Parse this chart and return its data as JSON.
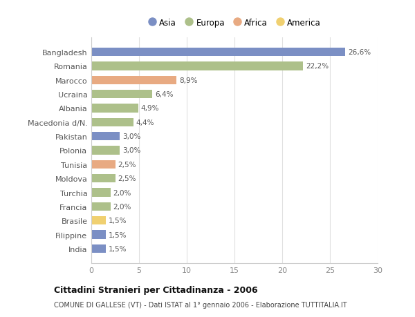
{
  "countries": [
    "Bangladesh",
    "Romania",
    "Marocco",
    "Ucraina",
    "Albania",
    "Macedonia d/N.",
    "Pakistan",
    "Polonia",
    "Tunisia",
    "Moldova",
    "Turchia",
    "Francia",
    "Brasile",
    "Filippine",
    "India"
  ],
  "values": [
    26.6,
    22.2,
    8.9,
    6.4,
    4.9,
    4.4,
    3.0,
    3.0,
    2.5,
    2.5,
    2.0,
    2.0,
    1.5,
    1.5,
    1.5
  ],
  "labels": [
    "26,6%",
    "22,2%",
    "8,9%",
    "6,4%",
    "4,9%",
    "4,4%",
    "3,0%",
    "3,0%",
    "2,5%",
    "2,5%",
    "2,0%",
    "2,0%",
    "1,5%",
    "1,5%",
    "1,5%"
  ],
  "continents": [
    "Asia",
    "Europa",
    "Africa",
    "Europa",
    "Europa",
    "Europa",
    "Asia",
    "Europa",
    "Africa",
    "Europa",
    "Europa",
    "Europa",
    "America",
    "Asia",
    "Asia"
  ],
  "colors": {
    "Asia": "#7b8fc4",
    "Europa": "#adc08a",
    "Africa": "#e8aa82",
    "America": "#f0d070"
  },
  "legend_order": [
    "Asia",
    "Europa",
    "Africa",
    "America"
  ],
  "title": "Cittadini Stranieri per Cittadinanza - 2006",
  "subtitle": "COMUNE DI GALLESE (VT) - Dati ISTAT al 1° gennaio 2006 - Elaborazione TUTTITALIA.IT",
  "xlim": [
    0,
    30
  ],
  "xticks": [
    0,
    5,
    10,
    15,
    20,
    25,
    30
  ],
  "background_color": "#ffffff",
  "bar_background": "#ffffff",
  "grid_color": "#e0e0e0"
}
